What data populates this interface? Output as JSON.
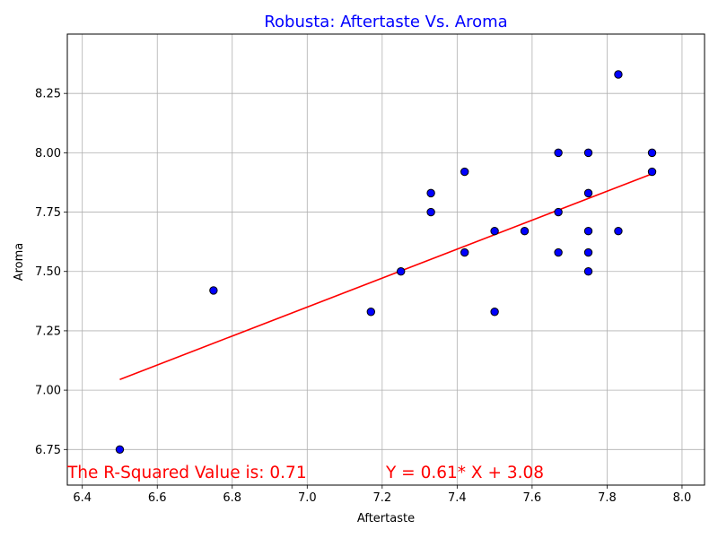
{
  "chart_data": {
    "type": "scatter",
    "title": "Robusta: Aftertaste Vs. Aroma",
    "xlabel": "Aftertaste",
    "ylabel": "Aroma",
    "xlim": [
      6.36,
      8.06
    ],
    "ylim": [
      6.6,
      8.5
    ],
    "xticks": [
      6.4,
      6.6,
      6.8,
      7.0,
      7.2,
      7.4,
      7.6,
      7.8,
      8.0
    ],
    "yticks": [
      6.75,
      7.0,
      7.25,
      7.5,
      7.75,
      8.0,
      8.25
    ],
    "xtick_labels": [
      "6.4",
      "6.6",
      "6.8",
      "7.0",
      "7.2",
      "7.4",
      "7.6",
      "7.8",
      "8.0"
    ],
    "ytick_labels": [
      "6.75",
      "7.00",
      "7.25",
      "7.50",
      "7.75",
      "8.00",
      "8.25"
    ],
    "grid": true,
    "points": [
      {
        "x": 6.5,
        "y": 6.75
      },
      {
        "x": 6.75,
        "y": 7.42
      },
      {
        "x": 7.17,
        "y": 7.33
      },
      {
        "x": 7.25,
        "y": 7.5
      },
      {
        "x": 7.33,
        "y": 7.83
      },
      {
        "x": 7.33,
        "y": 7.75
      },
      {
        "x": 7.42,
        "y": 7.92
      },
      {
        "x": 7.42,
        "y": 7.58
      },
      {
        "x": 7.5,
        "y": 7.67
      },
      {
        "x": 7.5,
        "y": 7.33
      },
      {
        "x": 7.58,
        "y": 7.67
      },
      {
        "x": 7.67,
        "y": 8.0
      },
      {
        "x": 7.67,
        "y": 7.75
      },
      {
        "x": 7.67,
        "y": 7.58
      },
      {
        "x": 7.75,
        "y": 8.0
      },
      {
        "x": 7.75,
        "y": 7.83
      },
      {
        "x": 7.75,
        "y": 7.67
      },
      {
        "x": 7.75,
        "y": 7.58
      },
      {
        "x": 7.75,
        "y": 7.5
      },
      {
        "x": 7.83,
        "y": 8.33
      },
      {
        "x": 7.83,
        "y": 7.67
      },
      {
        "x": 7.92,
        "y": 8.0
      },
      {
        "x": 7.92,
        "y": 7.92
      }
    ],
    "regression": {
      "slope": 0.61,
      "intercept": 3.08,
      "x_start": 6.5,
      "x_end": 7.92
    },
    "annotations": {
      "r_squared": "The R-Squared Value is: 0.71",
      "equation": "Y = 0.61* X + 3.08"
    },
    "colors": {
      "title": "#0000ff",
      "point_fill": "#0000ff",
      "point_edge": "#000000",
      "line": "#ff0000",
      "annotation": "#ff0000",
      "grid": "#b0b0b0"
    }
  }
}
